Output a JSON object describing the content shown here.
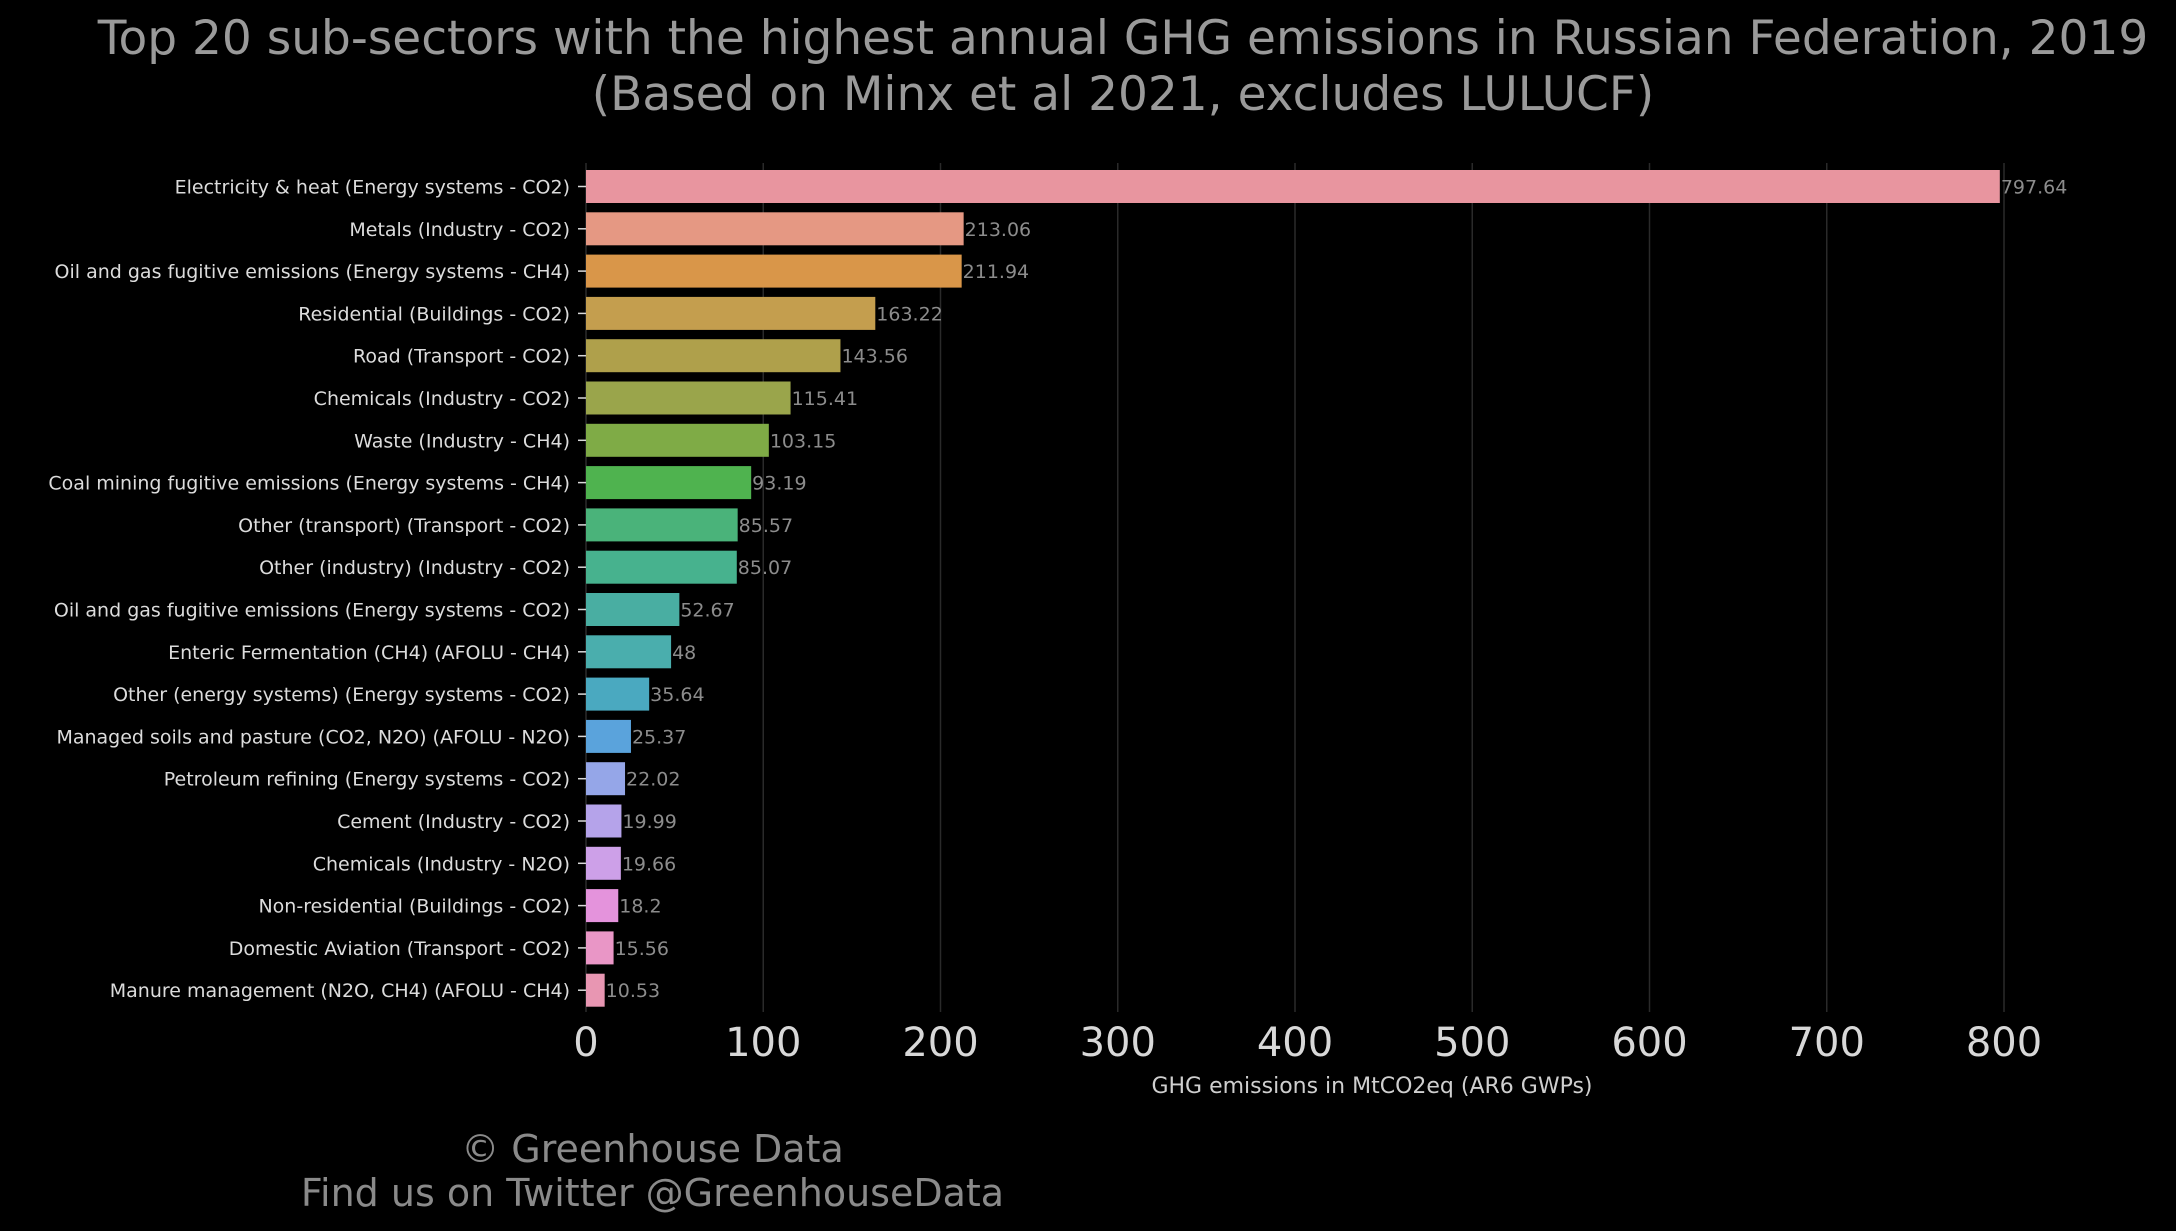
{
  "title_line1": "Top 20 sub-sectors with the highest annual GHG emissions in Russian Federation, 2019",
  "title_line2": "(Based on Minx et al 2021, excludes LULUCF)",
  "footer_line1": "© Greenhouse Data",
  "footer_line2": "Find us on Twitter @GreenhouseData",
  "chart_data": {
    "type": "bar",
    "orientation": "horizontal",
    "title": "Top 20 sub-sectors with the highest annual GHG emissions in Russian Federation, 2019 (Based on Minx et al 2021, excludes LULUCF)",
    "xlabel": "GHG emissions in MtCO2eq (AR6 GWPs)",
    "ylabel": "",
    "xlim": [
      0,
      800
    ],
    "xticks": [
      0,
      100,
      200,
      300,
      400,
      500,
      600,
      700,
      800
    ],
    "grid": "vertical",
    "categories": [
      "Electricity & heat (Energy systems - CO2)",
      "Metals (Industry - CO2)",
      "Oil and gas fugitive emissions (Energy systems - CH4)",
      "Residential (Buildings - CO2)",
      "Road (Transport - CO2)",
      "Chemicals (Industry - CO2)",
      "Waste (Industry - CH4)",
      "Coal mining fugitive emissions (Energy systems - CH4)",
      "Other (transport) (Transport - CO2)",
      "Other (industry) (Industry - CO2)",
      "Oil and gas fugitive emissions (Energy systems - CO2)",
      "Enteric Fermentation (CH4) (AFOLU - CH4)",
      "Other (energy systems) (Energy systems - CO2)",
      "Managed soils and pasture (CO2, N2O) (AFOLU - N2O)",
      "Petroleum refining (Energy systems - CO2)",
      "Cement (Industry - CO2)",
      "Chemicals (Industry - N2O)",
      "Non-residential (Buildings - CO2)",
      "Domestic Aviation (Transport - CO2)",
      "Manure management (N2O, CH4) (AFOLU - CH4)"
    ],
    "values": [
      797.64,
      213.06,
      211.94,
      163.22,
      143.56,
      115.41,
      103.15,
      93.19,
      85.57,
      85.07,
      52.67,
      48,
      35.64,
      25.37,
      22.02,
      19.99,
      19.66,
      18.2,
      15.56,
      10.53
    ],
    "value_labels": [
      "797.64",
      "213.06",
      "211.94",
      "163.22",
      "143.56",
      "115.41",
      "103.15",
      "93.19",
      "85.57",
      "85.07",
      "52.67",
      "48",
      "35.64",
      "25.37",
      "22.02",
      "19.99",
      "19.66",
      "18.2",
      "15.56",
      "10.53"
    ],
    "colors": [
      "#e8959f",
      "#e59883",
      "#d99649",
      "#c49e4e",
      "#afa04b",
      "#9aa54b",
      "#7fab46",
      "#4fb34f",
      "#4ab37a",
      "#47b28e",
      "#49aea2",
      "#4aaead",
      "#4aa9c0",
      "#5aa3dc",
      "#95a6e8",
      "#b5a3ea",
      "#cda0e8",
      "#e493dc",
      "#e996c6",
      "#e896b2"
    ]
  }
}
